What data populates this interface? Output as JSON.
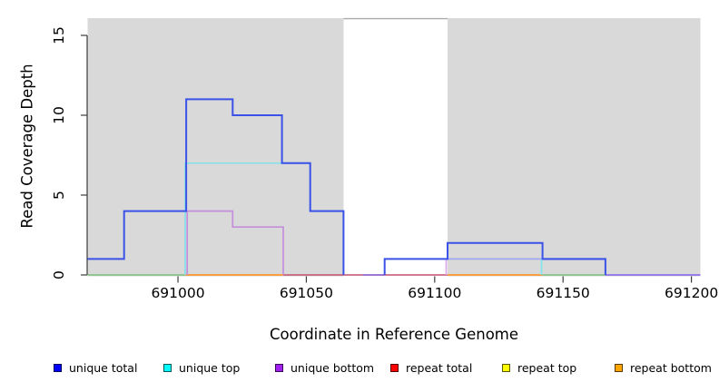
{
  "chart_data": {
    "type": "line",
    "subtype": "step-coverage-plot",
    "title": "",
    "xlabel": "Coordinate in Reference Genome",
    "ylabel": "Read Coverage Depth",
    "xlim": [
      690964.8,
      691203.5
    ],
    "ylim": [
      0,
      16.08
    ],
    "x_ticks": [
      691000,
      691050,
      691100,
      691150,
      691200
    ],
    "y_ticks": [
      0,
      5,
      10,
      15
    ],
    "grid": false,
    "legend_position": "bottom",
    "axis_color": "#3c3c3c",
    "plot_background": "#ffffff",
    "shaded_region_color": "#d9d9d9",
    "background_regions": [
      {
        "name": "shaded-left",
        "x1": 690964.8,
        "x2": 691064.5
      },
      {
        "name": "shaded-right",
        "x1": 691105,
        "x2": 691203.5
      }
    ],
    "gap_top_line": {
      "x1": 691064.5,
      "x2": 691105,
      "y": 16.05,
      "color": "#ababab"
    },
    "series": [
      {
        "name": "unique total",
        "color": "#0000FF",
        "changepoints": [
          [
            690964.8,
            1
          ],
          [
            690979,
            4
          ],
          [
            691003,
            11
          ],
          [
            691021,
            10
          ],
          [
            691040.5,
            7
          ],
          [
            691051.5,
            4
          ],
          [
            691064.5,
            0
          ],
          [
            691080.5,
            1
          ],
          [
            691105,
            2
          ],
          [
            691142,
            1
          ],
          [
            691166.5,
            0
          ]
        ]
      },
      {
        "name": "unique top",
        "color": "#00FFFF",
        "changepoints": [
          [
            690964.8,
            0
          ],
          [
            691003,
            7
          ],
          [
            691051.5,
            4
          ],
          [
            691064.5,
            0
          ],
          [
            691105,
            1
          ],
          [
            691142,
            0
          ]
        ]
      },
      {
        "name": "unique bottom",
        "color": "#A020F0",
        "changepoints": [
          [
            690964.8,
            0
          ],
          [
            691003.6,
            4
          ],
          [
            691021,
            3
          ],
          [
            691041,
            0
          ],
          [
            691105,
            1
          ],
          [
            691166.5,
            0
          ]
        ]
      },
      {
        "name": "repeat total",
        "color": "#FF0000",
        "changepoints": [
          [
            690964.8,
            0
          ]
        ]
      },
      {
        "name": "repeat top",
        "color": "#FFFF00",
        "changepoints": [
          [
            690964.8,
            0
          ]
        ]
      },
      {
        "name": "repeat bottom",
        "color": "#FFA500",
        "changepoints": [
          [
            690964.8,
            0
          ]
        ]
      }
    ],
    "render_segments": [
      {
        "name": "repeat-total-baseline",
        "color": "#C25070",
        "w": 1.6,
        "points": [
          [
            690964.8,
            0
          ],
          [
            691203.5,
            0
          ]
        ]
      },
      {
        "name": "baseline-green-left",
        "color": "#8CCD92",
        "w": 1.7,
        "points": [
          [
            690964.8,
            0
          ],
          [
            691002.8,
            0
          ]
        ]
      },
      {
        "name": "baseline-orange-left",
        "color": "#FF9F33",
        "w": 1.8,
        "points": [
          [
            691002.8,
            0
          ],
          [
            691041,
            0
          ]
        ]
      },
      {
        "name": "baseline-blue-red-blend",
        "color": "#8568D8",
        "w": 1.5,
        "points": [
          [
            691072,
            0
          ],
          [
            691080.5,
            0
          ]
        ]
      },
      {
        "name": "baseline-orange-right",
        "color": "#FF9F33",
        "w": 1.8,
        "points": [
          [
            691105,
            0
          ],
          [
            691142,
            0
          ]
        ]
      },
      {
        "name": "baseline-green-right",
        "color": "#8CCD92",
        "w": 1.7,
        "points": [
          [
            691142,
            0
          ],
          [
            691166.5,
            0
          ]
        ]
      },
      {
        "name": "baseline-violet-right",
        "color": "#8F7BEF",
        "w": 1.8,
        "points": [
          [
            691166.5,
            0
          ],
          [
            691203.5,
            0
          ]
        ]
      },
      {
        "name": "unique-bottom-steps",
        "color": "#C48EDC",
        "w": 1.7,
        "points": [
          [
            691003.6,
            0
          ],
          [
            691003.6,
            4
          ],
          [
            691021.3,
            4
          ],
          [
            691021.3,
            3
          ],
          [
            691041,
            3
          ],
          [
            691041,
            0
          ]
        ]
      },
      {
        "name": "unique-bottom-rise",
        "color": "#D8A8E8",
        "w": 1.7,
        "points": [
          [
            691104.5,
            0
          ],
          [
            691104.5,
            1
          ]
        ]
      },
      {
        "name": "strand-overlap-y1",
        "color": "#9FA8EF",
        "w": 1.7,
        "points": [
          [
            691104.5,
            1
          ],
          [
            691142,
            1
          ]
        ]
      },
      {
        "name": "bottom-total-overlap-y1",
        "color": "#7055E2",
        "w": 1.9,
        "points": [
          [
            691142,
            1
          ],
          [
            691166.5,
            1
          ]
        ]
      },
      {
        "name": "unique-top-steps",
        "color": "#87DFE7",
        "w": 1.7,
        "points": [
          [
            691002.8,
            0
          ],
          [
            691002.8,
            7
          ],
          [
            691051.5,
            7
          ],
          [
            691051.5,
            4
          ],
          [
            691064.5,
            4
          ],
          [
            691064.5,
            0
          ]
        ]
      },
      {
        "name": "unique-top-drop",
        "color": "#7FE6EE",
        "w": 1.7,
        "points": [
          [
            691141.6,
            1
          ],
          [
            691141.6,
            0
          ]
        ]
      },
      {
        "name": "unique-total-left",
        "color": "#3A52E8",
        "w": 2,
        "points": [
          [
            690964.8,
            1
          ],
          [
            690979,
            1
          ],
          [
            690979,
            4
          ],
          [
            691003.2,
            4
          ],
          [
            691003.2,
            11
          ],
          [
            691021.3,
            11
          ],
          [
            691021.3,
            10
          ],
          [
            691040.5,
            10
          ],
          [
            691040.5,
            7
          ],
          [
            691051.5,
            7
          ],
          [
            691051.5,
            4
          ],
          [
            691064.5,
            4
          ],
          [
            691064.5,
            0
          ]
        ]
      },
      {
        "name": "unique-total-right",
        "color": "#3A52E8",
        "w": 2,
        "points": [
          [
            691080.5,
            0
          ],
          [
            691080.5,
            1
          ],
          [
            691105,
            1
          ],
          [
            691105,
            2
          ],
          [
            691142,
            2
          ],
          [
            691142,
            1
          ],
          [
            691166.5,
            1
          ],
          [
            691166.5,
            0
          ]
        ]
      }
    ],
    "legend": [
      {
        "label": "unique total",
        "color": "#0000FF"
      },
      {
        "label": "unique top",
        "color": "#00FFFF"
      },
      {
        "label": "unique bottom",
        "color": "#A020F0"
      },
      {
        "label": "repeat total",
        "color": "#FF0000"
      },
      {
        "label": "repeat top",
        "color": "#FFFF00"
      },
      {
        "label": "repeat bottom",
        "color": "#FFA500"
      }
    ]
  }
}
